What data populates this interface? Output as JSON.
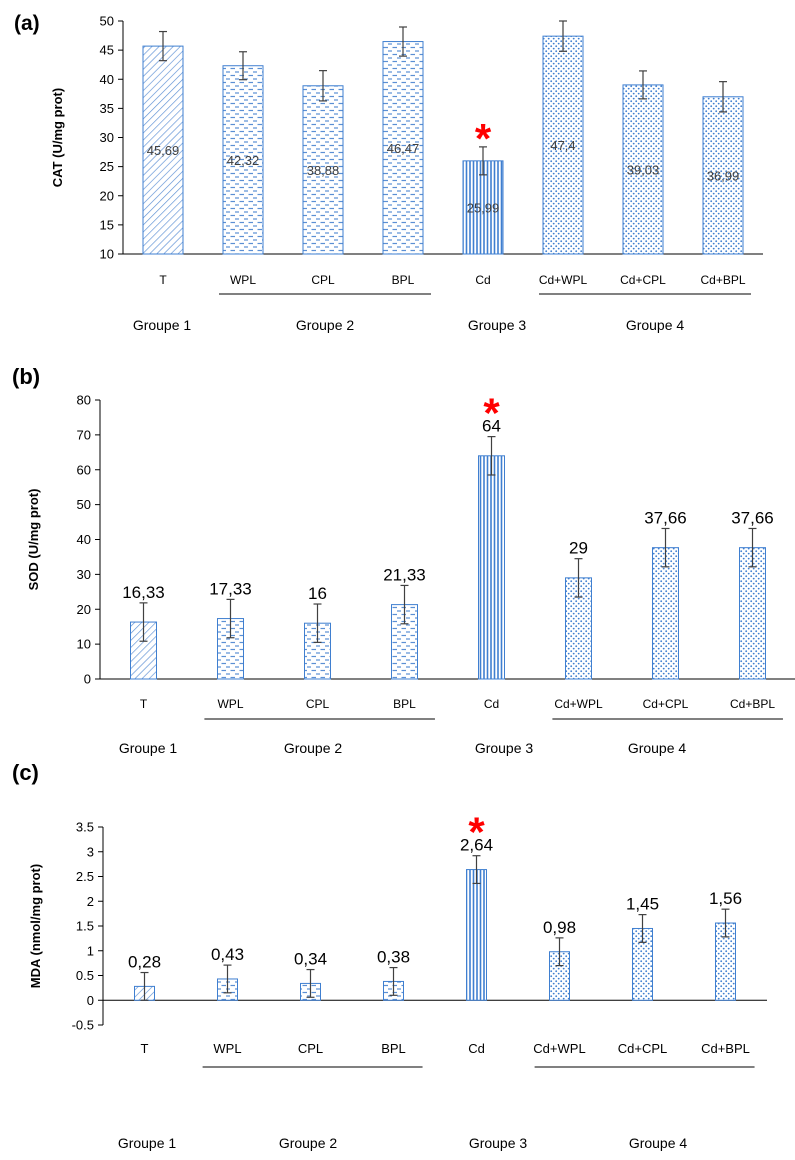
{
  "chart_data": [
    {
      "panel": "(a)",
      "type": "bar",
      "ylabel": "CAT (U/mg prot)",
      "ylim": [
        10,
        50
      ],
      "yticks": [
        10,
        15,
        20,
        25,
        30,
        35,
        40,
        45,
        50
      ],
      "categories": [
        "T",
        "WPL",
        "CPL",
        "BPL",
        "Cd",
        "Cd+WPL",
        "Cd+CPL",
        "Cd+BPL"
      ],
      "values": [
        45.69,
        42.32,
        38.88,
        46.47,
        25.99,
        47.4,
        39.03,
        36.99
      ],
      "value_labels": [
        "45,69",
        "42,32",
        "38,88",
        "46,47",
        "25,99",
        "47,4",
        "39,03",
        "36,99"
      ],
      "errors": [
        2.5,
        2.4,
        2.6,
        2.5,
        2.4,
        2.6,
        2.4,
        2.6
      ],
      "value_label_position": "inside",
      "significance": {
        "category": "Cd",
        "symbol": "*"
      },
      "groups": [
        {
          "label": "Groupe 1",
          "from": 0,
          "to": 0
        },
        {
          "label": "Groupe 2",
          "from": 1,
          "to": 3
        },
        {
          "label": "Groupe 3",
          "from": 4,
          "to": 4
        },
        {
          "label": "Groupe 4",
          "from": 5,
          "to": 7
        }
      ],
      "grid": false
    },
    {
      "panel": "(b)",
      "type": "bar",
      "ylabel": "SOD (U/mg prot)",
      "ylim": [
        0,
        80
      ],
      "yticks": [
        0,
        10,
        20,
        30,
        40,
        50,
        60,
        70,
        80
      ],
      "categories": [
        "T",
        "WPL",
        "CPL",
        "BPL",
        "Cd",
        "Cd+WPL",
        "Cd+CPL",
        "Cd+BPL"
      ],
      "values": [
        16.33,
        17.33,
        16,
        21.33,
        64,
        29,
        37.66,
        37.66
      ],
      "value_labels": [
        "16,33",
        "17,33",
        "16",
        "21,33",
        "64",
        "29",
        "37,66",
        "37,66"
      ],
      "errors": [
        5.5,
        5.5,
        5.5,
        5.5,
        5.5,
        5.5,
        5.5,
        5.5
      ],
      "value_label_position": "above",
      "significance": {
        "category": "Cd",
        "symbol": "*"
      },
      "groups": [
        {
          "label": "Groupe 1",
          "from": 0,
          "to": 0
        },
        {
          "label": "Groupe 2",
          "from": 1,
          "to": 3
        },
        {
          "label": "Groupe 3",
          "from": 4,
          "to": 4
        },
        {
          "label": "Groupe 4",
          "from": 5,
          "to": 7
        }
      ],
      "grid": false
    },
    {
      "panel": "(c)",
      "type": "bar",
      "ylabel": "MDA (nmol/mg prot)",
      "ylim": [
        -0.5,
        3.5
      ],
      "yticks": [
        -0.5,
        0,
        0.5,
        1,
        1.5,
        2,
        2.5,
        3,
        3.5
      ],
      "ytick_labels": [
        "-0.5",
        "0",
        "0.5",
        "1",
        "1.5",
        "2",
        "2.5",
        "3",
        "3.5"
      ],
      "categories": [
        "T",
        "WPL",
        "CPL",
        "BPL",
        "Cd",
        "Cd+WPL",
        "Cd+CPL",
        "Cd+BPL"
      ],
      "values": [
        0.28,
        0.43,
        0.34,
        0.38,
        2.64,
        0.98,
        1.45,
        1.56
      ],
      "value_labels": [
        "0,28",
        "0,43",
        "0,34",
        "0,38",
        "2,64",
        "0,98",
        "1,45",
        "1,56"
      ],
      "errors": [
        0.28,
        0.28,
        0.28,
        0.28,
        0.28,
        0.28,
        0.28,
        0.28
      ],
      "value_label_position": "above",
      "significance": {
        "category": "Cd",
        "symbol": "*"
      },
      "groups": [
        {
          "label": "Groupe 1",
          "from": 0,
          "to": 0
        },
        {
          "label": "Groupe 2",
          "from": 1,
          "to": 3
        },
        {
          "label": "Groupe 3",
          "from": 4,
          "to": 4
        },
        {
          "label": "Groupe 4",
          "from": 5,
          "to": 7
        }
      ],
      "grid": false
    }
  ],
  "colors": {
    "bar_outline": "#3f7fd0",
    "bar_pattern": "#5b8fd4",
    "axis": "#000000",
    "error_bar": "#404040",
    "significance": "#ff0000",
    "text": "#000000"
  },
  "bar_patterns": [
    "diagonal-hatch",
    "dashes",
    "dashes",
    "dashes",
    "vertical-stripes",
    "dots",
    "dots",
    "dots"
  ]
}
